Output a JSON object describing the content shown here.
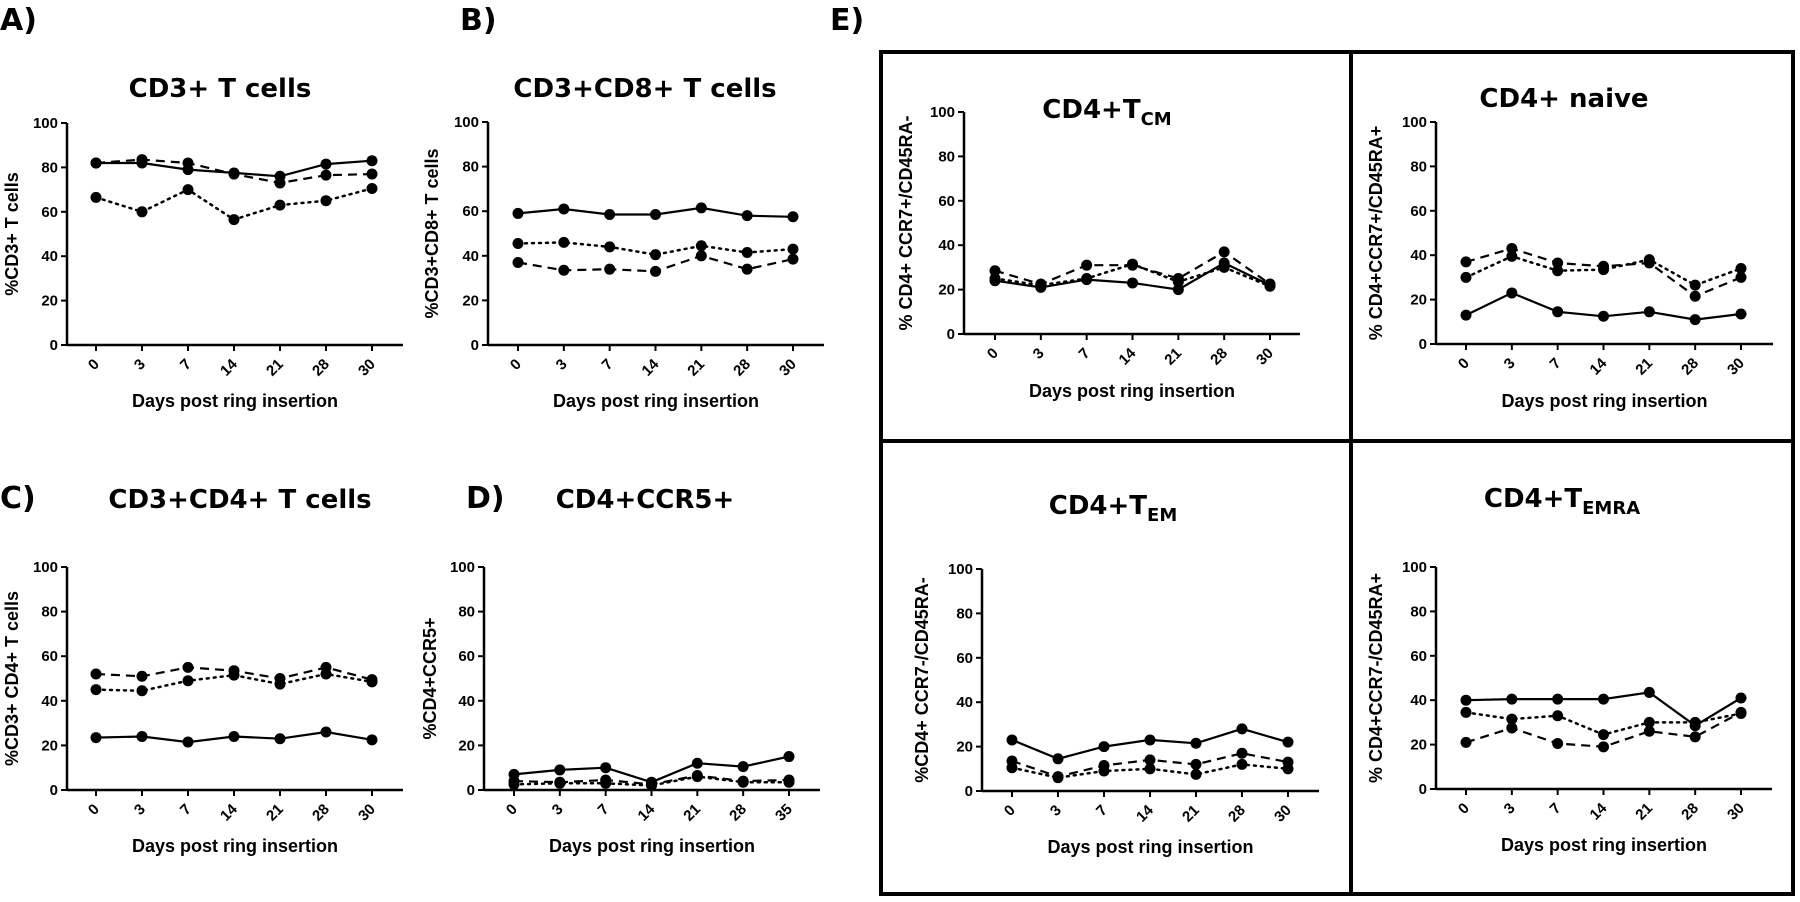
{
  "figure": {
    "panel_e_label": "E)"
  },
  "chart_data": [
    {
      "id": "A",
      "panel_label": "A)",
      "type": "line",
      "title": "CD3+ T cells",
      "title_sub": "",
      "xlabel": "Days post ring insertion",
      "ylabel": "%CD3+ T cells",
      "categories": [
        "0",
        "3",
        "7",
        "14",
        "21",
        "28",
        "30"
      ],
      "ylim": [
        0,
        100
      ],
      "yticks": [
        0,
        20,
        40,
        60,
        80,
        100
      ],
      "grid": false,
      "series": [
        {
          "name": "solid",
          "line_style": "solid",
          "values": [
            82,
            82,
            79,
            77.5,
            76,
            81.5,
            83
          ]
        },
        {
          "name": "dashed",
          "line_style": "dashed",
          "values": [
            82,
            83.5,
            82,
            77,
            73,
            76.5,
            77
          ]
        },
        {
          "name": "dotted",
          "line_style": "dotted",
          "values": [
            66.5,
            60,
            70,
            56.5,
            63,
            65,
            70.5
          ]
        }
      ]
    },
    {
      "id": "B",
      "panel_label": "B)",
      "type": "line",
      "title": "CD3+CD8+ T cells",
      "title_sub": "",
      "xlabel": "Days post ring insertion",
      "ylabel": "%CD3+CD8+ T cells",
      "categories": [
        "0",
        "3",
        "7",
        "14",
        "21",
        "28",
        "30"
      ],
      "ylim": [
        0,
        100
      ],
      "yticks": [
        0,
        20,
        40,
        60,
        80,
        100
      ],
      "grid": false,
      "series": [
        {
          "name": "solid",
          "line_style": "solid",
          "values": [
            59,
            61,
            58.5,
            58.5,
            61.5,
            58,
            57.5
          ]
        },
        {
          "name": "dotted",
          "line_style": "dotted",
          "values": [
            45.5,
            46,
            44,
            40.5,
            44.5,
            41.5,
            43
          ]
        },
        {
          "name": "dashed",
          "line_style": "dashed",
          "values": [
            37,
            33.5,
            34,
            33,
            40,
            34,
            38.5
          ]
        }
      ]
    },
    {
      "id": "C",
      "panel_label": "C)",
      "type": "line",
      "title": "CD3+CD4+ T cells",
      "title_sub": "",
      "xlabel": "Days post ring insertion",
      "ylabel": "%CD3+ CD4+ T cells",
      "categories": [
        "0",
        "3",
        "7",
        "14",
        "21",
        "28",
        "30"
      ],
      "ylim": [
        0,
        100
      ],
      "yticks": [
        0,
        20,
        40,
        60,
        80,
        100
      ],
      "grid": false,
      "series": [
        {
          "name": "dashed",
          "line_style": "dashed",
          "values": [
            52,
            51,
            55,
            53.5,
            50,
            55,
            49.5
          ]
        },
        {
          "name": "dotted",
          "line_style": "dotted",
          "values": [
            45,
            44.5,
            49,
            51.5,
            47.5,
            52,
            48.5
          ]
        },
        {
          "name": "solid",
          "line_style": "solid",
          "values": [
            23.5,
            24,
            21.5,
            24,
            23,
            26,
            22.5
          ]
        }
      ]
    },
    {
      "id": "D",
      "panel_label": "D)",
      "type": "line",
      "title": "CD4+CCR5+",
      "title_sub": "",
      "xlabel": "Days post ring insertion",
      "ylabel": "%CD4+CCR5+",
      "categories": [
        "0",
        "3",
        "7",
        "14",
        "21",
        "28",
        "35"
      ],
      "ylim": [
        0,
        100
      ],
      "yticks": [
        0,
        20,
        40,
        60,
        80,
        100
      ],
      "grid": false,
      "series": [
        {
          "name": "solid",
          "line_style": "solid",
          "values": [
            7,
            9,
            10,
            3.5,
            12,
            10.5,
            15
          ]
        },
        {
          "name": "dashed",
          "line_style": "dashed",
          "values": [
            4,
            3.5,
            4.5,
            2.5,
            6.5,
            4,
            4.5
          ]
        },
        {
          "name": "dotted",
          "line_style": "dotted",
          "values": [
            2.5,
            3,
            3,
            2,
            6,
            3.5,
            3.5
          ]
        }
      ]
    },
    {
      "id": "E1",
      "panel_label": "",
      "type": "line",
      "title": "CD4+T",
      "title_sub": "CM",
      "xlabel": "Days post ring insertion",
      "ylabel": "% CD4+ CCR7+/CD45RA-",
      "categories": [
        "0",
        "3",
        "7",
        "14",
        "21",
        "28",
        "30"
      ],
      "ylim": [
        0,
        100
      ],
      "yticks": [
        0,
        20,
        40,
        60,
        80,
        100
      ],
      "grid": false,
      "series": [
        {
          "name": "dashed",
          "line_style": "dashed",
          "values": [
            28.5,
            22.5,
            31,
            31,
            25,
            37,
            22.5
          ]
        },
        {
          "name": "dotted",
          "line_style": "dotted",
          "values": [
            25,
            22,
            25,
            31.5,
            23.5,
            30,
            21.5
          ]
        },
        {
          "name": "solid",
          "line_style": "solid",
          "values": [
            24,
            21,
            24.5,
            23,
            20,
            32,
            22
          ]
        }
      ]
    },
    {
      "id": "E2",
      "panel_label": "",
      "type": "line",
      "title": "CD4+ naive",
      "title_sub": "",
      "xlabel": "Days post ring insertion",
      "ylabel": "% CD4+CCR7+/CD45RA+",
      "categories": [
        "0",
        "3",
        "7",
        "14",
        "21",
        "28",
        "30"
      ],
      "ylim": [
        0,
        100
      ],
      "yticks": [
        0,
        20,
        40,
        60,
        80,
        100
      ],
      "grid": false,
      "series": [
        {
          "name": "dashed",
          "line_style": "dashed",
          "values": [
            37,
            43,
            36.5,
            35,
            36.5,
            21.5,
            30
          ]
        },
        {
          "name": "dotted",
          "line_style": "dotted",
          "values": [
            30,
            39.5,
            33,
            33.5,
            38,
            26.5,
            34
          ]
        },
        {
          "name": "solid",
          "line_style": "solid",
          "values": [
            13,
            23,
            14.5,
            12.5,
            14.5,
            11,
            13.5
          ]
        }
      ]
    },
    {
      "id": "E3",
      "panel_label": "",
      "type": "line",
      "title": "CD4+T",
      "title_sub": "EM",
      "xlabel": "Days post ring insertion",
      "ylabel": "%CD4+ CCR7-/CD45RA-",
      "categories": [
        "0",
        "3",
        "7",
        "14",
        "21",
        "28",
        "30"
      ],
      "ylim": [
        0,
        100
      ],
      "yticks": [
        0,
        20,
        40,
        60,
        80,
        100
      ],
      "grid": false,
      "series": [
        {
          "name": "solid",
          "line_style": "solid",
          "values": [
            23,
            14.5,
            20,
            23,
            21.5,
            28,
            22
          ]
        },
        {
          "name": "dashed",
          "line_style": "dashed",
          "values": [
            13.5,
            6.5,
            11.5,
            14,
            12,
            17,
            13
          ]
        },
        {
          "name": "dotted",
          "line_style": "dotted",
          "values": [
            10.5,
            6,
            9,
            10,
            7.5,
            12,
            10
          ]
        }
      ]
    },
    {
      "id": "E4",
      "panel_label": "",
      "type": "line",
      "title": "CD4+T",
      "title_sub": "EMRA",
      "xlabel": "Days post ring insertion",
      "ylabel": "% CD4+CCR7-/CD45RA+",
      "categories": [
        "0",
        "3",
        "7",
        "14",
        "21",
        "28",
        "30"
      ],
      "ylim": [
        0,
        100
      ],
      "yticks": [
        0,
        20,
        40,
        60,
        80,
        100
      ],
      "grid": false,
      "series": [
        {
          "name": "solid",
          "line_style": "solid",
          "values": [
            40,
            40.5,
            40.5,
            40.5,
            43.5,
            28.5,
            41
          ]
        },
        {
          "name": "dotted",
          "line_style": "dotted",
          "values": [
            34.5,
            31.5,
            33,
            24.5,
            30,
            30,
            34
          ]
        },
        {
          "name": "dashed",
          "line_style": "dashed",
          "values": [
            21,
            27.5,
            20.5,
            19,
            26,
            23.5,
            34.5
          ]
        }
      ]
    }
  ]
}
